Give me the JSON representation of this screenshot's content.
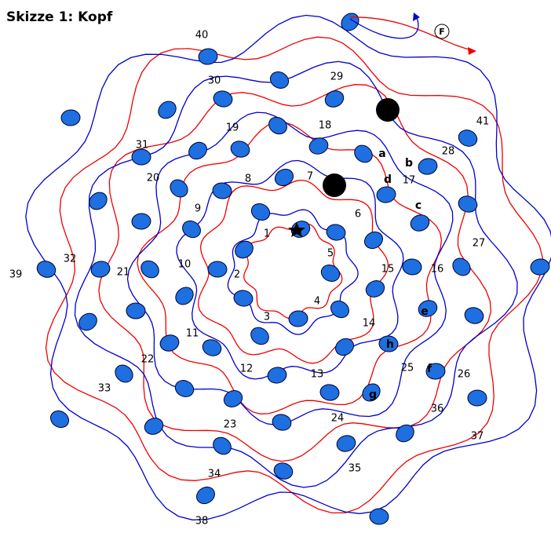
{
  "title": "Skizze 1: Kopf",
  "numbers": [
    "1",
    "2",
    "3",
    "4",
    "5",
    "6",
    "7",
    "8",
    "9",
    "10",
    "11",
    "12",
    "13",
    "14",
    "15",
    "16",
    "17",
    "18",
    "19",
    "20",
    "21",
    "22",
    "23",
    "24",
    "25",
    "26",
    "27",
    "28",
    "29",
    "30",
    "31",
    "32",
    "33",
    "34",
    "35",
    "36",
    "37",
    "38",
    "39",
    "40",
    "41"
  ],
  "letters": [
    "a",
    "b",
    "c",
    "d",
    "e",
    "f",
    "g",
    "h"
  ],
  "marker": "F"
}
